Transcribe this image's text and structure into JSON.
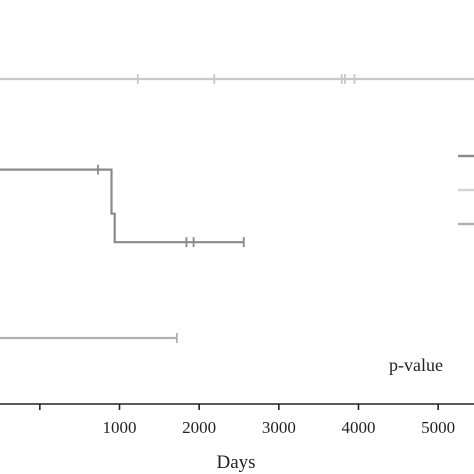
{
  "chart_data": {
    "type": "line",
    "xlabel": "Days",
    "x_ticks": [
      1000,
      2000,
      3000,
      4000,
      5000
    ],
    "xlim": [
      -500,
      5450
    ],
    "ylim": [
      0,
      1.05
    ],
    "grid": false,
    "annotation": "p-value",
    "series": [
      {
        "color": "#c8c8c8",
        "points": [
          [
            -500,
            1.0
          ],
          [
            5450,
            1.0
          ]
        ],
        "censor_x": [
          1230,
          2190,
          3790,
          3830,
          3950
        ]
      },
      {
        "color": "#8a8a8a",
        "points": [
          [
            -500,
            0.65
          ],
          [
            900,
            0.65
          ],
          [
            900,
            0.48
          ],
          [
            940,
            0.48
          ],
          [
            940,
            0.37
          ],
          [
            2560,
            0.37
          ]
        ],
        "censor_x": [
          730,
          1840,
          1930,
          2560
        ]
      },
      {
        "color": "#b0b0b0",
        "points": [
          [
            -500,
            0.0
          ],
          [
            1720,
            0.0
          ]
        ],
        "censor_x": [
          1720
        ]
      }
    ],
    "legend_colors": [
      "#8a8a8a",
      "#d4d4d4",
      "#b0b0b0"
    ]
  }
}
